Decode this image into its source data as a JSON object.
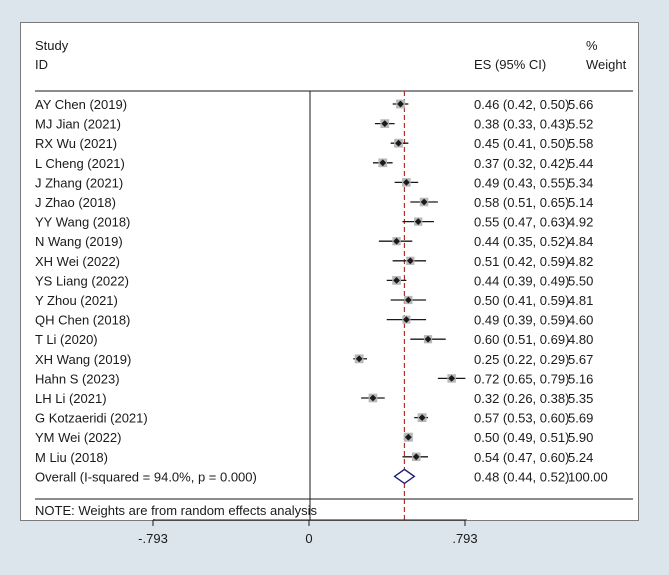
{
  "chart_data": {
    "type": "forest",
    "header": {
      "study_line1": "Study",
      "study_line2": "ID",
      "es_label": "ES (95% CI)",
      "weight_line1": "%",
      "weight_line2": "Weight"
    },
    "studies": [
      {
        "label": "AY Chen (2019)",
        "es": 0.46,
        "lo": 0.42,
        "hi": 0.5,
        "weight": 5.66,
        "es_text": "0.46 (0.42, 0.50)",
        "weight_text": "5.66"
      },
      {
        "label": "MJ Jian (2021)",
        "es": 0.38,
        "lo": 0.33,
        "hi": 0.43,
        "weight": 5.52,
        "es_text": "0.38 (0.33, 0.43)",
        "weight_text": "5.52"
      },
      {
        "label": "RX Wu (2021)",
        "es": 0.45,
        "lo": 0.41,
        "hi": 0.5,
        "weight": 5.58,
        "es_text": "0.45 (0.41, 0.50)",
        "weight_text": "5.58"
      },
      {
        "label": "L Cheng (2021)",
        "es": 0.37,
        "lo": 0.32,
        "hi": 0.42,
        "weight": 5.44,
        "es_text": "0.37 (0.32, 0.42)",
        "weight_text": "5.44"
      },
      {
        "label": "J Zhang (2021)",
        "es": 0.49,
        "lo": 0.43,
        "hi": 0.55,
        "weight": 5.34,
        "es_text": "0.49 (0.43, 0.55)",
        "weight_text": "5.34"
      },
      {
        "label": "J Zhao (2018)",
        "es": 0.58,
        "lo": 0.51,
        "hi": 0.65,
        "weight": 5.14,
        "es_text": "0.58 (0.51, 0.65)",
        "weight_text": "5.14"
      },
      {
        "label": "YY Wang (2018)",
        "es": 0.55,
        "lo": 0.47,
        "hi": 0.63,
        "weight": 4.92,
        "es_text": "0.55 (0.47, 0.63)",
        "weight_text": "4.92"
      },
      {
        "label": "N Wang (2019)",
        "es": 0.44,
        "lo": 0.35,
        "hi": 0.52,
        "weight": 4.84,
        "es_text": "0.44 (0.35, 0.52)",
        "weight_text": "4.84"
      },
      {
        "label": "XH Wei (2022)",
        "es": 0.51,
        "lo": 0.42,
        "hi": 0.59,
        "weight": 4.82,
        "es_text": "0.51 (0.42, 0.59)",
        "weight_text": "4.82"
      },
      {
        "label": "YS Liang (2022)",
        "es": 0.44,
        "lo": 0.39,
        "hi": 0.49,
        "weight": 5.5,
        "es_text": "0.44 (0.39, 0.49)",
        "weight_text": "5.50"
      },
      {
        "label": "Y Zhou (2021)",
        "es": 0.5,
        "lo": 0.41,
        "hi": 0.59,
        "weight": 4.81,
        "es_text": "0.50 (0.41, 0.59)",
        "weight_text": "4.81"
      },
      {
        "label": "QH Chen (2018)",
        "es": 0.49,
        "lo": 0.39,
        "hi": 0.59,
        "weight": 4.6,
        "es_text": "0.49 (0.39, 0.59)",
        "weight_text": "4.60"
      },
      {
        "label": "T Li (2020)",
        "es": 0.6,
        "lo": 0.51,
        "hi": 0.69,
        "weight": 4.8,
        "es_text": "0.60 (0.51, 0.69)",
        "weight_text": "4.80"
      },
      {
        "label": "XH Wang (2019)",
        "es": 0.25,
        "lo": 0.22,
        "hi": 0.29,
        "weight": 5.67,
        "es_text": "0.25 (0.22, 0.29)",
        "weight_text": "5.67"
      },
      {
        "label": "Hahn S (2023)",
        "es": 0.72,
        "lo": 0.65,
        "hi": 0.79,
        "weight": 5.16,
        "es_text": "0.72 (0.65, 0.79)",
        "weight_text": "5.16"
      },
      {
        "label": "LH Li (2021)",
        "es": 0.32,
        "lo": 0.26,
        "hi": 0.38,
        "weight": 5.35,
        "es_text": "0.32 (0.26, 0.38)",
        "weight_text": "5.35"
      },
      {
        "label": "G Kotzaeridi (2021)",
        "es": 0.57,
        "lo": 0.53,
        "hi": 0.6,
        "weight": 5.69,
        "es_text": "0.57 (0.53, 0.60)",
        "weight_text": "5.69"
      },
      {
        "label": "YM Wei (2022)",
        "es": 0.5,
        "lo": 0.49,
        "hi": 0.51,
        "weight": 5.9,
        "es_text": "0.50 (0.49, 0.51)",
        "weight_text": "5.90"
      },
      {
        "label": "M Liu (2018)",
        "es": 0.54,
        "lo": 0.47,
        "hi": 0.6,
        "weight": 5.24,
        "es_text": "0.54 (0.47, 0.60)",
        "weight_text": "5.24"
      }
    ],
    "overall": {
      "label": "Overall  (I-squared = 94.0%, p = 0.000)",
      "es": 0.48,
      "lo": 0.44,
      "hi": 0.52,
      "weight": 100.0,
      "es_text": "0.48 (0.44, 0.52)",
      "weight_text": "100.00"
    },
    "note": "NOTE: Weights are from random effects analysis",
    "xlim": [
      -0.793,
      0.793
    ],
    "xticks": [
      {
        "value": -0.793,
        "label": "-.793"
      },
      {
        "value": 0,
        "label": "0"
      },
      {
        "value": 0.793,
        "label": ".793"
      }
    ],
    "null_line": 0,
    "overall_line": 0.48,
    "colors": {
      "background": "#dce5ec",
      "panel": "#ffffff",
      "point": "#1a1a1a",
      "overall_line": "#b03030",
      "diamond": "#1f1f7a"
    }
  }
}
